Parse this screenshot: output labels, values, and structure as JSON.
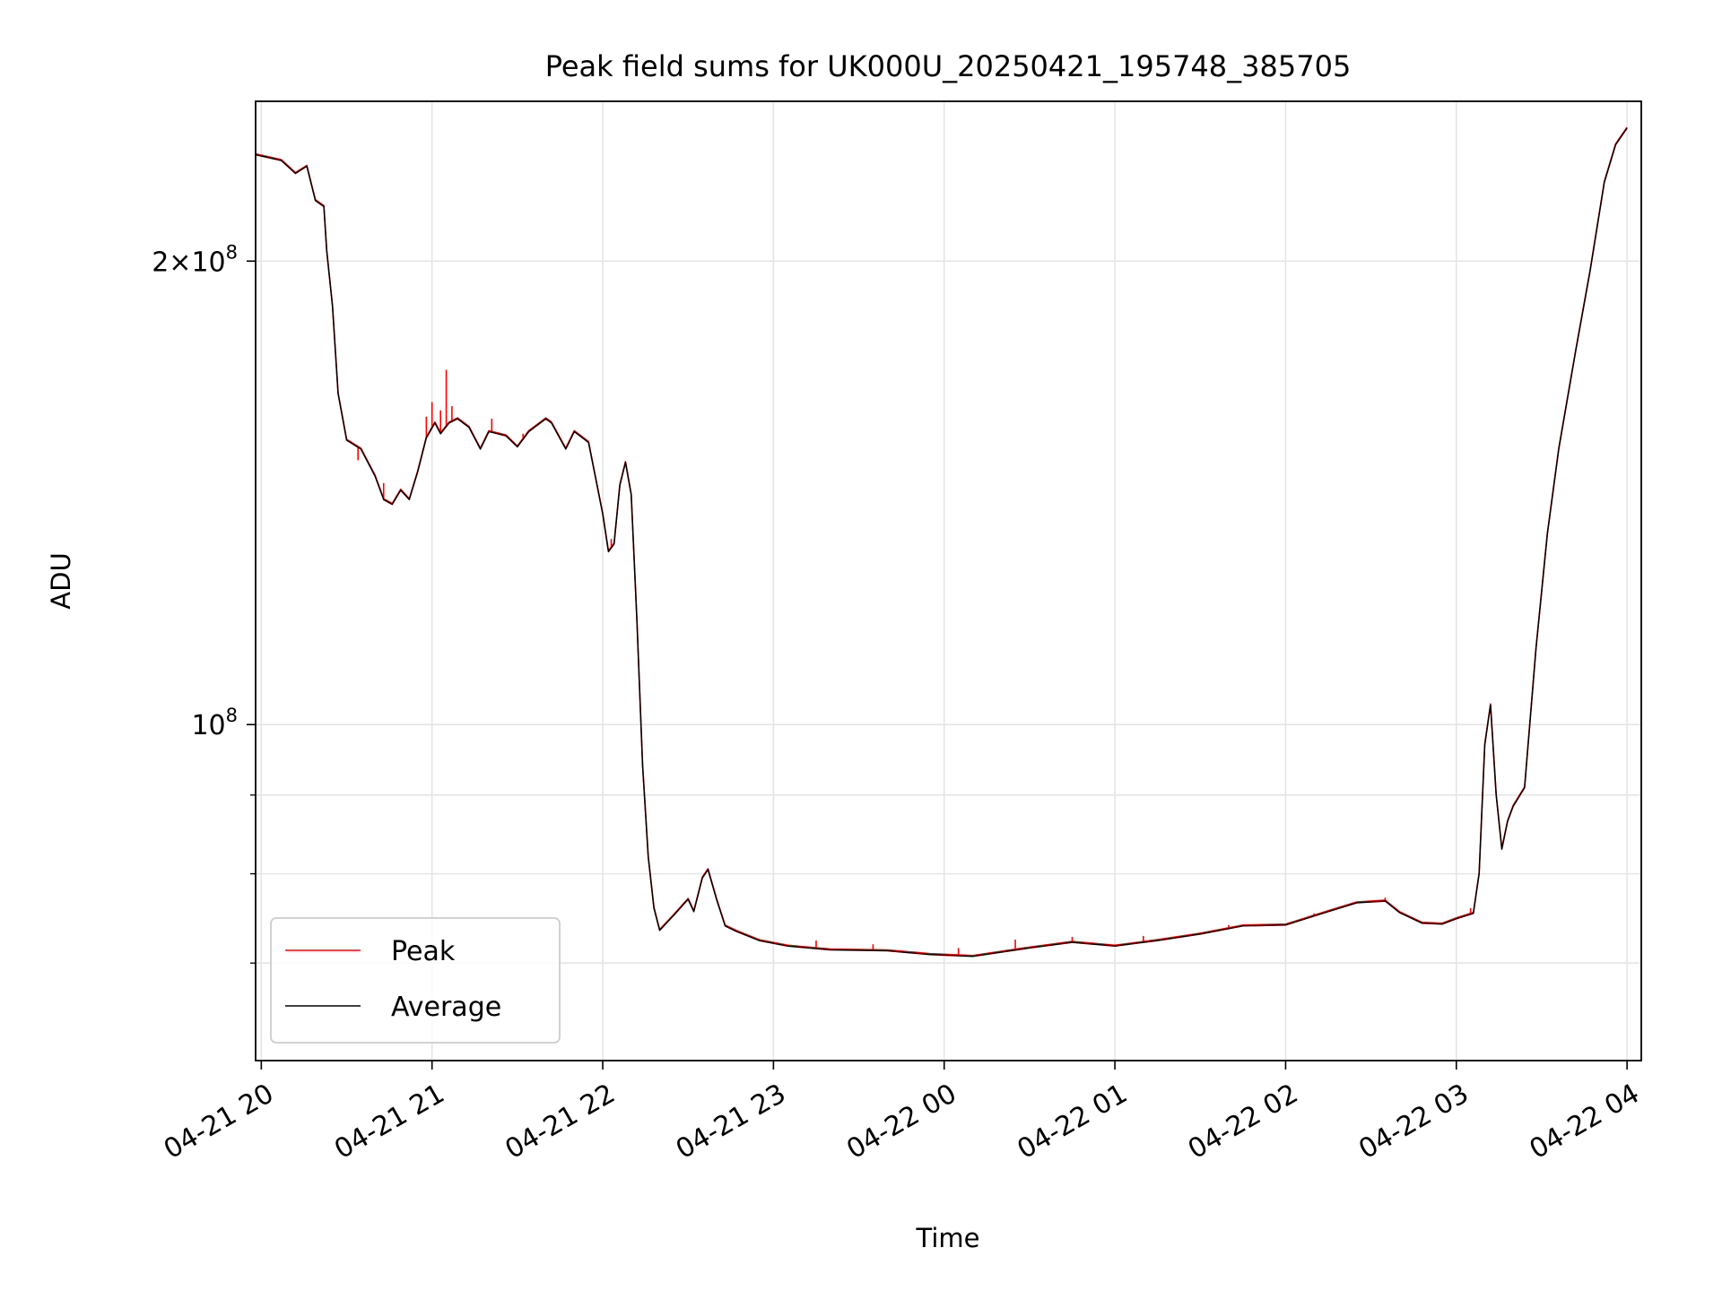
{
  "chart_data": {
    "type": "line",
    "title": "Peak field sums for UK000U_20250421_195748_385705",
    "xlabel": "Time",
    "ylabel": "ADU",
    "yscale": "log",
    "ylim": [
      60500000,
      254000000
    ],
    "xlim": [
      "2025-04-21 19:58",
      "2025-04-22 04:05"
    ],
    "grid": true,
    "legend_position": "lower-left",
    "x_ticks": [
      {
        "t": "2025-04-21 20:00",
        "label": "04-21 20"
      },
      {
        "t": "2025-04-21 21:00",
        "label": "04-21 21"
      },
      {
        "t": "2025-04-21 22:00",
        "label": "04-21 22"
      },
      {
        "t": "2025-04-21 23:00",
        "label": "04-21 23"
      },
      {
        "t": "2025-04-22 00:00",
        "label": "04-22 00"
      },
      {
        "t": "2025-04-22 01:00",
        "label": "04-22 01"
      },
      {
        "t": "2025-04-22 02:00",
        "label": "04-22 02"
      },
      {
        "t": "2025-04-22 03:00",
        "label": "04-22 03"
      },
      {
        "t": "2025-04-22 04:00",
        "label": "04-22 04"
      }
    ],
    "y_ticks_major": [
      {
        "value": 100000000,
        "base": "10",
        "exp": "8",
        "coef": ""
      },
      {
        "value": 200000000,
        "base": "10",
        "exp": "8",
        "coef": "2×"
      }
    ],
    "y_ticks_minor": [
      70000000,
      80000000,
      90000000
    ],
    "colors": {
      "Peak": "#ff0000",
      "Average": "#000000"
    },
    "series": [
      {
        "name": "Average",
        "points": [
          [
            "2025-04-21 19:58",
            234500000
          ],
          [
            "2025-04-21 20:07",
            232500000
          ],
          [
            "2025-04-21 20:12",
            228000000
          ],
          [
            "2025-04-21 20:16",
            230500000
          ],
          [
            "2025-04-21 20:19",
            219000000
          ],
          [
            "2025-04-21 20:22",
            217000000
          ],
          [
            "2025-04-21 20:23",
            203000000
          ],
          [
            "2025-04-21 20:25",
            187000000
          ],
          [
            "2025-04-21 20:27",
            164000000
          ],
          [
            "2025-04-21 20:30",
            153000000
          ],
          [
            "2025-04-21 20:35",
            151000000
          ],
          [
            "2025-04-21 20:40",
            145000000
          ],
          [
            "2025-04-21 20:43",
            140000000
          ],
          [
            "2025-04-21 20:46",
            139000000
          ],
          [
            "2025-04-21 20:49",
            142000000
          ],
          [
            "2025-04-21 20:52",
            140000000
          ],
          [
            "2025-04-21 20:55",
            146000000
          ],
          [
            "2025-04-21 20:58",
            153500000
          ],
          [
            "2025-04-21 21:01",
            157000000
          ],
          [
            "2025-04-21 21:03",
            154500000
          ],
          [
            "2025-04-21 21:06",
            157000000
          ],
          [
            "2025-04-21 21:09",
            158000000
          ],
          [
            "2025-04-21 21:13",
            156000000
          ],
          [
            "2025-04-21 21:17",
            151000000
          ],
          [
            "2025-04-21 21:20",
            155000000
          ],
          [
            "2025-04-21 21:23",
            154500000
          ],
          [
            "2025-04-21 21:26",
            154000000
          ],
          [
            "2025-04-21 21:30",
            151500000
          ],
          [
            "2025-04-21 21:34",
            155000000
          ],
          [
            "2025-04-21 21:40",
            158000000
          ],
          [
            "2025-04-21 21:42",
            157000000
          ],
          [
            "2025-04-21 21:47",
            151000000
          ],
          [
            "2025-04-21 21:50",
            155000000
          ],
          [
            "2025-04-21 21:55",
            152500000
          ],
          [
            "2025-04-21 22:00",
            137000000
          ],
          [
            "2025-04-21 22:02",
            129500000
          ],
          [
            "2025-04-21 22:04",
            131000000
          ],
          [
            "2025-04-21 22:06",
            143000000
          ],
          [
            "2025-04-21 22:08",
            148000000
          ],
          [
            "2025-04-21 22:10",
            141000000
          ],
          [
            "2025-04-21 22:12",
            117000000
          ],
          [
            "2025-04-21 22:14",
            94000000
          ],
          [
            "2025-04-21 22:16",
            82000000
          ],
          [
            "2025-04-21 22:18",
            76000000
          ],
          [
            "2025-04-21 22:20",
            73500000
          ],
          [
            "2025-04-21 22:25",
            75200000
          ],
          [
            "2025-04-21 22:30",
            77000000
          ],
          [
            "2025-04-21 22:32",
            75600000
          ],
          [
            "2025-04-21 22:35",
            79500000
          ],
          [
            "2025-04-21 22:37",
            80500000
          ],
          [
            "2025-04-21 22:40",
            77000000
          ],
          [
            "2025-04-21 22:43",
            74000000
          ],
          [
            "2025-04-21 22:47",
            73400000
          ],
          [
            "2025-04-21 22:55",
            72400000
          ],
          [
            "2025-04-21 23:05",
            71800000
          ],
          [
            "2025-04-21 23:20",
            71400000
          ],
          [
            "2025-04-21 23:40",
            71300000
          ],
          [
            "2025-04-21 23:55",
            70900000
          ],
          [
            "2025-04-22 00:10",
            70700000
          ],
          [
            "2025-04-22 00:30",
            71600000
          ],
          [
            "2025-04-22 00:45",
            72200000
          ],
          [
            "2025-04-22 01:00",
            71800000
          ],
          [
            "2025-04-22 01:15",
            72400000
          ],
          [
            "2025-04-22 01:30",
            73100000
          ],
          [
            "2025-04-22 01:45",
            74000000
          ],
          [
            "2025-04-22 02:00",
            74100000
          ],
          [
            "2025-04-22 02:15",
            75600000
          ],
          [
            "2025-04-22 02:25",
            76600000
          ],
          [
            "2025-04-22 02:35",
            76800000
          ],
          [
            "2025-04-22 02:40",
            75500000
          ],
          [
            "2025-04-22 02:48",
            74300000
          ],
          [
            "2025-04-22 02:55",
            74200000
          ],
          [
            "2025-04-22 03:00",
            74800000
          ],
          [
            "2025-04-22 03:06",
            75400000
          ],
          [
            "2025-04-22 03:08",
            80000000
          ],
          [
            "2025-04-22 03:10",
            97000000
          ],
          [
            "2025-04-22 03:12",
            103000000
          ],
          [
            "2025-04-22 03:14",
            90000000
          ],
          [
            "2025-04-22 03:16",
            83000000
          ],
          [
            "2025-04-22 03:18",
            86500000
          ],
          [
            "2025-04-22 03:20",
            88500000
          ],
          [
            "2025-04-22 03:24",
            91000000
          ],
          [
            "2025-04-22 03:28",
            112000000
          ],
          [
            "2025-04-22 03:32",
            133000000
          ],
          [
            "2025-04-22 03:36",
            151000000
          ],
          [
            "2025-04-22 03:42",
            175000000
          ],
          [
            "2025-04-22 03:47",
            197000000
          ],
          [
            "2025-04-22 03:52",
            225000000
          ],
          [
            "2025-04-22 03:56",
            238000000
          ],
          [
            "2025-04-22 04:00",
            244000000
          ]
        ]
      },
      {
        "name": "Peak",
        "spikes": [
          [
            "2025-04-21 20:34",
            148500000
          ],
          [
            "2025-04-21 20:43",
            143500000
          ],
          [
            "2025-04-21 20:58",
            158500000
          ],
          [
            "2025-04-21 21:00",
            162000000
          ],
          [
            "2025-04-21 21:03",
            160000000
          ],
          [
            "2025-04-21 21:05",
            170000000
          ],
          [
            "2025-04-21 21:07",
            161000000
          ],
          [
            "2025-04-21 21:21",
            158000000
          ],
          [
            "2025-04-21 21:32",
            154500000
          ],
          [
            "2025-04-21 22:03",
            132000000
          ],
          [
            "2025-04-21 23:15",
            72400000
          ],
          [
            "2025-04-21 23:35",
            72000000
          ],
          [
            "2025-04-22 00:05",
            71600000
          ],
          [
            "2025-04-22 00:25",
            72500000
          ],
          [
            "2025-04-22 00:45",
            72800000
          ],
          [
            "2025-04-22 01:10",
            72900000
          ],
          [
            "2025-04-22 01:40",
            74100000
          ],
          [
            "2025-04-22 02:10",
            75400000
          ],
          [
            "2025-04-22 02:25",
            76700000
          ],
          [
            "2025-04-22 02:35",
            77200000
          ],
          [
            "2025-04-22 03:05",
            76000000
          ]
        ]
      }
    ]
  }
}
